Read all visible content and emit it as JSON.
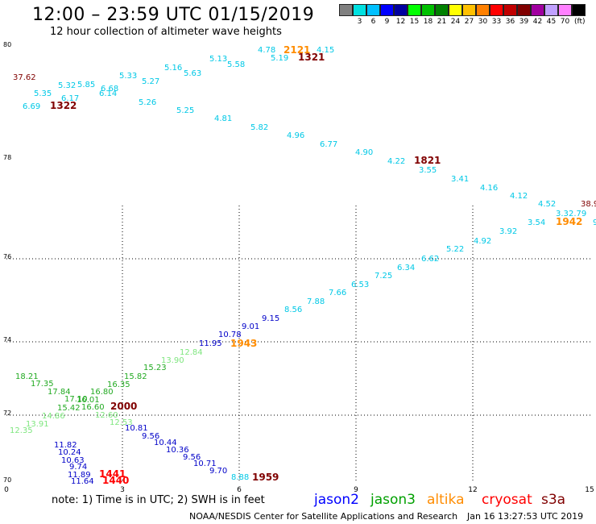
{
  "title": "12:00 – 23:59 UTC 01/15/2019",
  "subtitle": "12 hour collection of altimeter wave heights",
  "color_scale": {
    "unit": "(ft)",
    "entries": [
      {
        "label": "",
        "color": "#808080"
      },
      {
        "label": "3",
        "color": "#00e0e0"
      },
      {
        "label": "6",
        "color": "#00c0ff"
      },
      {
        "label": "9",
        "color": "#0000ff"
      },
      {
        "label": "12",
        "color": "#0000a0"
      },
      {
        "label": "15",
        "color": "#00ff00"
      },
      {
        "label": "18",
        "color": "#00c000"
      },
      {
        "label": "21",
        "color": "#008000"
      },
      {
        "label": "24",
        "color": "#ffff00"
      },
      {
        "label": "27",
        "color": "#ffc000"
      },
      {
        "label": "30",
        "color": "#ff8000"
      },
      {
        "label": "33",
        "color": "#ff0000"
      },
      {
        "label": "36",
        "color": "#c00000"
      },
      {
        "label": "39",
        "color": "#800000"
      },
      {
        "label": "42",
        "color": "#a000a0"
      },
      {
        "label": "45",
        "color": "#c0a0ff"
      },
      {
        "label": "70",
        "color": "#ff80ff"
      },
      {
        "label": "",
        "color": "#000000"
      }
    ]
  },
  "axes": {
    "x_ticks": [
      "0",
      "3",
      "6",
      "9",
      "12",
      "15"
    ],
    "y_ticks": [
      "80",
      "78",
      "76",
      "74",
      "72",
      "70"
    ]
  },
  "note": "note:  1) Time is in UTC; 2) SWH is in feet",
  "satellites": [
    {
      "name": "jason2",
      "color": "#0000ff"
    },
    {
      "name": "jason3",
      "color": "#00a000"
    },
    {
      "name": "altika",
      "color": "#ff8c00"
    },
    {
      "name": "cryosat",
      "color": "#ff0000"
    },
    {
      "name": "s3a",
      "color": "#800000"
    }
  ],
  "credit": "NOAA/NESDIS Center for Satellite Applications and Research",
  "timestamp": "Jan 16 13:27:53 UTC 2019",
  "observations": [
    {
      "text": "37.62",
      "color": "#800000"
    },
    {
      "text": "5.35",
      "color": "#00c8e6"
    },
    {
      "text": "5.32",
      "color": "#00c8e6"
    },
    {
      "text": "5.85",
      "color": "#00c8e6"
    },
    {
      "text": "6.17",
      "color": "#00c8e6"
    },
    {
      "text": "6.68",
      "color": "#00c8e6"
    },
    {
      "text": "6.14",
      "color": "#00c8e6"
    },
    {
      "text": "6.69",
      "color": "#00c8e6"
    },
    {
      "text": "1322",
      "color": "#800000"
    },
    {
      "text": "5.33",
      "color": "#00c8e6"
    },
    {
      "text": "5.27",
      "color": "#00c8e6"
    },
    {
      "text": "5.16",
      "color": "#00c8e6"
    },
    {
      "text": "5.63",
      "color": "#00c8e6"
    },
    {
      "text": "5.13",
      "color": "#00c8e6"
    },
    {
      "text": "5.58",
      "color": "#00c8e6"
    },
    {
      "text": "4.78",
      "color": "#00c8e6"
    },
    {
      "text": "5.19",
      "color": "#00c8e6"
    },
    {
      "text": "2121",
      "color": "#ff8c00"
    },
    {
      "text": "1321",
      "color": "#800000"
    },
    {
      "text": "4.15",
      "color": "#00c8e6"
    },
    {
      "text": "5.26",
      "color": "#00c8e6"
    },
    {
      "text": "5.25",
      "color": "#00c8e6"
    },
    {
      "text": "4.81",
      "color": "#00c8e6"
    },
    {
      "text": "5.82",
      "color": "#00c8e6"
    },
    {
      "text": "4.96",
      "color": "#00c8e6"
    },
    {
      "text": "6.77",
      "color": "#00c8e6"
    },
    {
      "text": "4.90",
      "color": "#00c8e6"
    },
    {
      "text": "4.22",
      "color": "#00c8e6"
    },
    {
      "text": "1821",
      "color": "#800000"
    },
    {
      "text": "3.55",
      "color": "#00c8e6"
    },
    {
      "text": "3.41",
      "color": "#00c8e6"
    },
    {
      "text": "4.16",
      "color": "#00c8e6"
    },
    {
      "text": "4.12",
      "color": "#00c8e6"
    },
    {
      "text": "4.52",
      "color": "#00c8e6"
    },
    {
      "text": "38.9",
      "color": "#800000"
    },
    {
      "text": "3.54",
      "color": "#00c8e6"
    },
    {
      "text": "3.3",
      "color": "#00c8e6"
    },
    {
      "text": "2.79",
      "color": "#00c8e6"
    },
    {
      "text": "1942",
      "color": "#ff8c00"
    },
    {
      "text": "9",
      "color": "#00c8e6"
    },
    {
      "text": "3.92",
      "color": "#00c8e6"
    },
    {
      "text": "4.92",
      "color": "#00c8e6"
    },
    {
      "text": "5.22",
      "color": "#00c8e6"
    },
    {
      "text": "6.62",
      "color": "#00c8e6"
    },
    {
      "text": "6.34",
      "color": "#00c8e6"
    },
    {
      "text": "7.25",
      "color": "#00c8e6"
    },
    {
      "text": "6.53",
      "color": "#00c8e6"
    },
    {
      "text": "7.66",
      "color": "#00c8e6"
    },
    {
      "text": "7.88",
      "color": "#00c8e6"
    },
    {
      "text": "8.56",
      "color": "#00c8e6"
    },
    {
      "text": "9.15",
      "color": "#0000c8"
    },
    {
      "text": "9.01",
      "color": "#0000c8"
    },
    {
      "text": "10.78",
      "color": "#0000c8"
    },
    {
      "text": "11.95",
      "color": "#0000c8"
    },
    {
      "text": "1943",
      "color": "#ff8c00"
    },
    {
      "text": "12.84",
      "color": "#7fe67f"
    },
    {
      "text": "13.90",
      "color": "#7fe67f"
    },
    {
      "text": "15.23",
      "color": "#22aa22"
    },
    {
      "text": "15.82",
      "color": "#22aa22"
    },
    {
      "text": "16.35",
      "color": "#22aa22"
    },
    {
      "text": "16.80",
      "color": "#22aa22"
    },
    {
      "text": "18.21",
      "color": "#22aa22"
    },
    {
      "text": "17.35",
      "color": "#22aa22"
    },
    {
      "text": "17.84",
      "color": "#22aa22"
    },
    {
      "text": "17.10",
      "color": "#22aa22"
    },
    {
      "text": "16.01",
      "color": "#22aa22"
    },
    {
      "text": "15.42",
      "color": "#22aa22"
    },
    {
      "text": "16.60",
      "color": "#22aa22"
    },
    {
      "text": "2000",
      "color": "#800000"
    },
    {
      "text": "14.86",
      "color": "#7fe67f"
    },
    {
      "text": "13.91",
      "color": "#7fe67f"
    },
    {
      "text": "12.35",
      "color": "#7fe67f"
    },
    {
      "text": "12.60",
      "color": "#7fe67f"
    },
    {
      "text": "12.53",
      "color": "#7fe67f"
    },
    {
      "text": "10.81",
      "color": "#0000c8"
    },
    {
      "text": "9.56",
      "color": "#0000c8"
    },
    {
      "text": "10.44",
      "color": "#0000c8"
    },
    {
      "text": "10.36",
      "color": "#0000c8"
    },
    {
      "text": "9.56",
      "color": "#0000c8"
    },
    {
      "text": "10.71",
      "color": "#0000c8"
    },
    {
      "text": "9.70",
      "color": "#0000c8"
    },
    {
      "text": "8.88",
      "color": "#00c8e6"
    },
    {
      "text": "1959",
      "color": "#800000"
    },
    {
      "text": "11.82",
      "color": "#0000c8"
    },
    {
      "text": "10.24",
      "color": "#0000c8"
    },
    {
      "text": "10.63",
      "color": "#0000c8"
    },
    {
      "text": "9.74",
      "color": "#0000c8"
    },
    {
      "text": "11.89",
      "color": "#0000c8"
    },
    {
      "text": "11.64",
      "color": "#0000c8"
    },
    {
      "text": "1441",
      "color": "#ff0000"
    },
    {
      "text": "1440",
      "color": "#ff0000"
    }
  ]
}
